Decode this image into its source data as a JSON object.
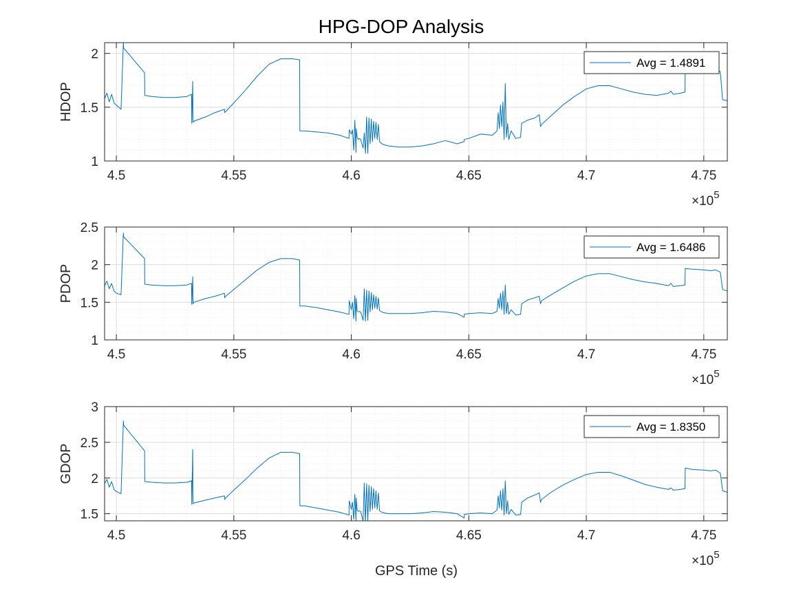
{
  "figure": {
    "title": "HPG-DOP Analysis",
    "xlabel": "GPS Time (s)"
  },
  "colors": {
    "line": "#0072BD",
    "axes": "#262626",
    "grid_major": "#dcdcdc",
    "grid_minor": "#ececec",
    "background": "#ffffff"
  },
  "chart_data": [
    {
      "type": "line",
      "ylabel": "HDOP",
      "xlim": [
        449500,
        476000
      ],
      "ylim": [
        1,
        2.1
      ],
      "xtick_values": [
        450000,
        455000,
        460000,
        465000,
        470000,
        475000
      ],
      "xtick_labels": [
        "4.5",
        "4.55",
        "4.6",
        "4.65",
        "4.7",
        "4.75"
      ],
      "xaxis_exponent_label": "×10",
      "xaxis_exponent": "5",
      "ytick_values": [
        1,
        1.5,
        2
      ],
      "ytick_labels": [
        "1",
        "1.5",
        "2"
      ],
      "grid": "on (major + minor)",
      "legend_position": "top-right",
      "series": [
        {
          "name": "Avg = 1.4891",
          "x": [
            449500,
            449600,
            449700,
            449800,
            449900,
            450000,
            450200,
            450300,
            450310,
            451200,
            451210,
            451500,
            452000,
            452500,
            453000,
            453200,
            453210,
            453250,
            453260,
            453300,
            453800,
            454200,
            454600,
            454610,
            454650,
            455000,
            455500,
            456000,
            456500,
            457000,
            457500,
            457800,
            457810,
            458000,
            458500,
            459000,
            459500,
            459900,
            459910,
            460000,
            460050,
            460100,
            460150,
            460200,
            460210,
            460250,
            460300,
            460350,
            460400,
            460500,
            460550,
            460600,
            460650,
            460700,
            460750,
            460800,
            460850,
            460900,
            460950,
            461000,
            461050,
            461100,
            461150,
            461200,
            461250,
            461300,
            461400,
            461600,
            462000,
            462500,
            463000,
            463500,
            464000,
            464500,
            464800,
            464810,
            465000,
            465500,
            466000,
            466200,
            466250,
            466300,
            466350,
            466400,
            466450,
            466500,
            466550,
            466600,
            466650,
            466700,
            466800,
            467000,
            467200,
            467250,
            467500,
            467800,
            468000,
            468050,
            468100,
            468500,
            469000,
            469500,
            470000,
            470500,
            471000,
            471500,
            472000,
            472500,
            473000,
            473500,
            473600,
            473700,
            474000,
            474200,
            474210,
            474500,
            475000,
            475300,
            475500,
            475700,
            475800,
            476000
          ],
          "y": [
            1.58,
            1.63,
            1.55,
            1.62,
            1.54,
            1.52,
            1.48,
            2.1,
            2.05,
            1.82,
            1.61,
            1.6,
            1.59,
            1.59,
            1.6,
            1.62,
            1.35,
            1.74,
            1.36,
            1.37,
            1.41,
            1.45,
            1.48,
            1.45,
            1.46,
            1.54,
            1.66,
            1.79,
            1.9,
            1.95,
            1.95,
            1.94,
            1.28,
            1.28,
            1.27,
            1.26,
            1.24,
            1.21,
            1.29,
            1.25,
            1.29,
            1.1,
            1.38,
            1.08,
            1.3,
            1.22,
            1.2,
            1.21,
            1.2,
            1.12,
            1.26,
            1.07,
            1.41,
            1.07,
            1.4,
            1.16,
            1.39,
            1.18,
            1.37,
            1.21,
            1.36,
            1.2,
            1.34,
            1.18,
            1.17,
            1.16,
            1.15,
            1.14,
            1.13,
            1.13,
            1.14,
            1.16,
            1.19,
            1.16,
            1.18,
            1.2,
            1.21,
            1.25,
            1.24,
            1.28,
            1.45,
            1.3,
            1.52,
            1.32,
            1.55,
            1.2,
            1.72,
            1.22,
            1.35,
            1.2,
            1.28,
            1.21,
            1.22,
            1.35,
            1.38,
            1.4,
            1.43,
            1.32,
            1.34,
            1.42,
            1.52,
            1.6,
            1.67,
            1.7,
            1.7,
            1.67,
            1.64,
            1.62,
            1.61,
            1.63,
            1.65,
            1.62,
            1.63,
            1.64,
            1.86,
            1.85,
            1.85,
            1.84,
            1.86,
            1.83,
            1.57,
            1.56
          ]
        }
      ]
    },
    {
      "type": "line",
      "ylabel": "PDOP",
      "xlim": [
        449500,
        476000
      ],
      "ylim": [
        1,
        2.5
      ],
      "xtick_values": [
        450000,
        455000,
        460000,
        465000,
        470000,
        475000
      ],
      "xtick_labels": [
        "4.5",
        "4.55",
        "4.6",
        "4.65",
        "4.7",
        "4.75"
      ],
      "xaxis_exponent_label": "×10",
      "xaxis_exponent": "5",
      "ytick_values": [
        1,
        1.5,
        2,
        2.5
      ],
      "ytick_labels": [
        "1",
        "1.5",
        "2",
        "2.5"
      ],
      "grid": "on (major + minor)",
      "legend_position": "top-right",
      "series": [
        {
          "name": "Avg = 1.6486",
          "x": [
            449500,
            449600,
            449700,
            449800,
            449900,
            450000,
            450200,
            450300,
            450310,
            451200,
            451210,
            451500,
            452000,
            452500,
            453000,
            453200,
            453210,
            453250,
            453260,
            453300,
            453800,
            454200,
            454600,
            454610,
            454650,
            455000,
            455500,
            456000,
            456500,
            457000,
            457500,
            457800,
            457810,
            458000,
            458500,
            459000,
            459500,
            459900,
            459910,
            460000,
            460050,
            460100,
            460150,
            460200,
            460210,
            460250,
            460300,
            460350,
            460400,
            460500,
            460550,
            460600,
            460650,
            460700,
            460750,
            460800,
            460850,
            460900,
            460950,
            461000,
            461050,
            461100,
            461150,
            461200,
            461250,
            461300,
            461400,
            461600,
            462000,
            462500,
            463000,
            463500,
            464000,
            464500,
            464800,
            464810,
            465000,
            465500,
            466000,
            466200,
            466250,
            466300,
            466350,
            466400,
            466450,
            466500,
            466550,
            466600,
            466650,
            466700,
            466800,
            467000,
            467200,
            467250,
            467500,
            467800,
            468000,
            468050,
            468100,
            468500,
            469000,
            469500,
            470000,
            470500,
            471000,
            471500,
            472000,
            472500,
            473000,
            473500,
            473600,
            473700,
            474000,
            474200,
            474210,
            474500,
            475000,
            475300,
            475500,
            475700,
            475800,
            476000
          ],
          "y": [
            1.72,
            1.78,
            1.68,
            1.75,
            1.65,
            1.62,
            1.6,
            2.42,
            2.37,
            2.08,
            1.74,
            1.73,
            1.72,
            1.72,
            1.73,
            1.75,
            1.47,
            1.84,
            1.48,
            1.5,
            1.55,
            1.58,
            1.62,
            1.56,
            1.58,
            1.67,
            1.8,
            1.93,
            2.03,
            2.08,
            2.08,
            2.06,
            1.45,
            1.45,
            1.43,
            1.4,
            1.37,
            1.34,
            1.52,
            1.4,
            1.5,
            1.28,
            1.59,
            1.25,
            1.55,
            1.38,
            1.37,
            1.38,
            1.37,
            1.26,
            1.68,
            1.25,
            1.66,
            1.26,
            1.65,
            1.37,
            1.63,
            1.4,
            1.6,
            1.42,
            1.58,
            1.41,
            1.56,
            1.39,
            1.38,
            1.37,
            1.36,
            1.35,
            1.35,
            1.35,
            1.36,
            1.38,
            1.37,
            1.35,
            1.3,
            1.34,
            1.35,
            1.36,
            1.35,
            1.38,
            1.55,
            1.42,
            1.62,
            1.4,
            1.65,
            1.34,
            1.73,
            1.35,
            1.5,
            1.34,
            1.4,
            1.33,
            1.34,
            1.48,
            1.53,
            1.56,
            1.58,
            1.48,
            1.52,
            1.6,
            1.69,
            1.78,
            1.85,
            1.88,
            1.88,
            1.84,
            1.8,
            1.77,
            1.75,
            1.72,
            1.75,
            1.71,
            1.72,
            1.73,
            1.95,
            1.94,
            1.93,
            1.92,
            1.93,
            1.9,
            1.67,
            1.65
          ]
        }
      ]
    },
    {
      "type": "line",
      "ylabel": "GDOP",
      "xlim": [
        449500,
        476000
      ],
      "ylim": [
        1.4,
        3
      ],
      "xtick_values": [
        450000,
        455000,
        460000,
        465000,
        470000,
        475000
      ],
      "xtick_labels": [
        "4.5",
        "4.55",
        "4.6",
        "4.65",
        "4.7",
        "4.75"
      ],
      "xaxis_exponent_label": "×10",
      "xaxis_exponent": "5",
      "ytick_values": [
        1.5,
        2,
        2.5,
        3
      ],
      "ytick_labels": [
        "1.5",
        "2",
        "2.5",
        "3"
      ],
      "grid": "on (major + minor)",
      "legend_position": "top-right",
      "series": [
        {
          "name": "Avg = 1.8350",
          "x": [
            449500,
            449600,
            449700,
            449800,
            449900,
            450000,
            450200,
            450300,
            450310,
            451200,
            451210,
            451500,
            452000,
            452500,
            453000,
            453200,
            453210,
            453250,
            453260,
            453300,
            453800,
            454200,
            454600,
            454610,
            454650,
            455000,
            455500,
            456000,
            456500,
            457000,
            457500,
            457800,
            457810,
            458000,
            458500,
            459000,
            459500,
            459900,
            459910,
            460000,
            460050,
            460100,
            460150,
            460200,
            460210,
            460250,
            460300,
            460350,
            460400,
            460500,
            460550,
            460600,
            460650,
            460700,
            460750,
            460800,
            460850,
            460900,
            460950,
            461000,
            461050,
            461100,
            461150,
            461200,
            461250,
            461300,
            461400,
            461600,
            462000,
            462500,
            463000,
            463500,
            464000,
            464500,
            464800,
            464810,
            465000,
            465500,
            466000,
            466200,
            466250,
            466300,
            466350,
            466400,
            466450,
            466500,
            466550,
            466600,
            466650,
            466700,
            466800,
            467000,
            467200,
            467250,
            467500,
            467800,
            468000,
            468050,
            468100,
            468500,
            469000,
            469500,
            470000,
            470500,
            471000,
            471500,
            472000,
            472500,
            473000,
            473500,
            473600,
            473700,
            474000,
            474200,
            474210,
            474500,
            475000,
            475300,
            475500,
            475700,
            475800,
            476000
          ],
          "y": [
            1.92,
            1.98,
            1.87,
            1.95,
            1.84,
            1.81,
            1.78,
            2.8,
            2.74,
            2.38,
            1.95,
            1.94,
            1.93,
            1.93,
            1.94,
            1.96,
            1.63,
            2.4,
            1.64,
            1.65,
            1.69,
            1.72,
            1.75,
            1.7,
            1.72,
            1.83,
            1.98,
            2.14,
            2.28,
            2.36,
            2.36,
            2.34,
            1.61,
            1.61,
            1.58,
            1.55,
            1.52,
            1.48,
            1.68,
            1.56,
            1.66,
            1.42,
            1.77,
            1.4,
            1.72,
            1.55,
            1.53,
            1.54,
            1.53,
            1.4,
            1.93,
            1.38,
            1.92,
            1.4,
            1.9,
            1.53,
            1.88,
            1.56,
            1.85,
            1.58,
            1.82,
            1.56,
            1.79,
            1.54,
            1.53,
            1.52,
            1.51,
            1.5,
            1.5,
            1.5,
            1.51,
            1.53,
            1.52,
            1.5,
            1.44,
            1.49,
            1.5,
            1.51,
            1.5,
            1.55,
            1.75,
            1.58,
            1.82,
            1.55,
            1.85,
            1.48,
            1.96,
            1.5,
            1.68,
            1.49,
            1.56,
            1.48,
            1.49,
            1.66,
            1.72,
            1.76,
            1.79,
            1.66,
            1.7,
            1.8,
            1.9,
            1.98,
            2.05,
            2.08,
            2.08,
            2.03,
            1.97,
            1.91,
            1.87,
            1.84,
            1.86,
            1.83,
            1.84,
            1.85,
            2.14,
            2.12,
            2.11,
            2.1,
            2.11,
            2.07,
            1.82,
            1.8
          ]
        }
      ]
    }
  ]
}
